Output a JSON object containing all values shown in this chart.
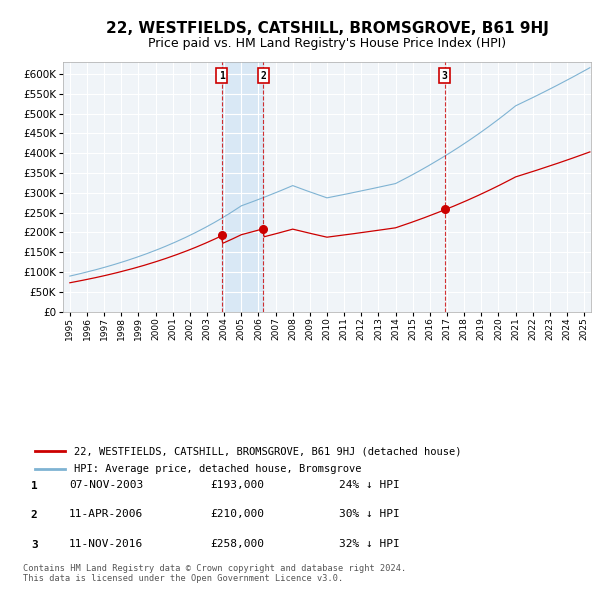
{
  "title": "22, WESTFIELDS, CATSHILL, BROMSGROVE, B61 9HJ",
  "subtitle": "Price paid vs. HM Land Registry's House Price Index (HPI)",
  "title_fontsize": 11,
  "subtitle_fontsize": 9,
  "ytick_values": [
    0,
    50000,
    100000,
    150000,
    200000,
    250000,
    300000,
    350000,
    400000,
    450000,
    500000,
    550000,
    600000
  ],
  "ylim": [
    0,
    630000
  ],
  "xlim_start": 1994.6,
  "xlim_end": 2025.4,
  "xticks": [
    1995,
    1996,
    1997,
    1998,
    1999,
    2000,
    2001,
    2002,
    2003,
    2004,
    2005,
    2006,
    2007,
    2008,
    2009,
    2010,
    2011,
    2012,
    2013,
    2014,
    2015,
    2016,
    2017,
    2018,
    2019,
    2020,
    2021,
    2022,
    2023,
    2024,
    2025
  ],
  "sale_color": "#cc0000",
  "hpi_color": "#7fb3d3",
  "annotation_box_color": "#cc0000",
  "background_color": "#ffffff",
  "plot_background_color": "#f0f4f8",
  "grid_color": "#ffffff",
  "shade_color": "#d0e4f4",
  "transactions": [
    {
      "date_num": 2003.85,
      "price": 193000,
      "label": "1"
    },
    {
      "date_num": 2006.28,
      "price": 210000,
      "label": "2"
    },
    {
      "date_num": 2016.86,
      "price": 258000,
      "label": "3"
    }
  ],
  "legend_sale_label": "22, WESTFIELDS, CATSHILL, BROMSGROVE, B61 9HJ (detached house)",
  "legend_hpi_label": "HPI: Average price, detached house, Bromsgrove",
  "table_entries": [
    {
      "label": "1",
      "date": "07-NOV-2003",
      "price": "£193,000",
      "pct": "24% ↓ HPI"
    },
    {
      "label": "2",
      "date": "11-APR-2006",
      "price": "£210,000",
      "pct": "30% ↓ HPI"
    },
    {
      "label": "3",
      "date": "11-NOV-2016",
      "price": "£258,000",
      "pct": "32% ↓ HPI"
    }
  ],
  "footer": "Contains HM Land Registry data © Crown copyright and database right 2024.\nThis data is licensed under the Open Government Licence v3.0.",
  "vline_color": "#cc0000",
  "vline_style": "--"
}
